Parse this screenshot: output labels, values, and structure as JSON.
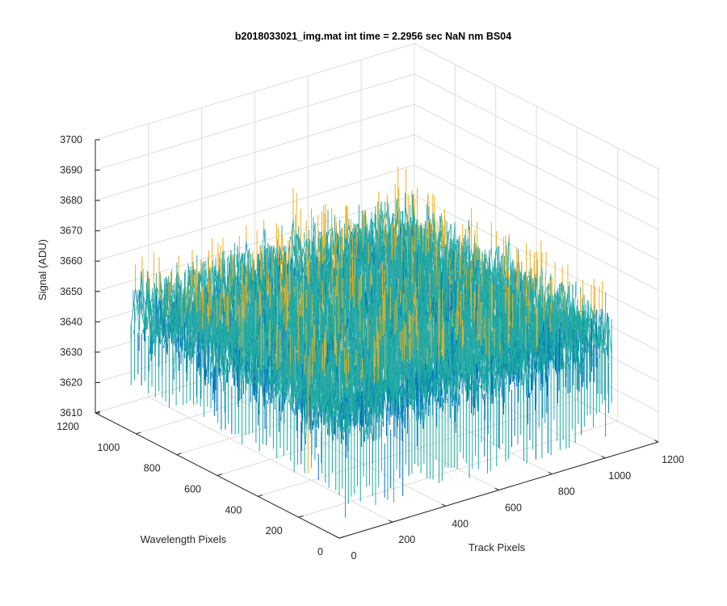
{
  "chart_data": {
    "type": "surface",
    "title": "b2018033021_img.mat int time = 2.2956 sec  NaN nm BS04",
    "xlabel": "Track Pixels",
    "ylabel": "Wavelength Pixels",
    "zlabel": "Signal (ADU)",
    "xlim": [
      0,
      1200
    ],
    "ylim": [
      0,
      1200
    ],
    "zlim": [
      3610,
      3700
    ],
    "xticks": [
      "0",
      "200",
      "400",
      "600",
      "800",
      "1000",
      "1200"
    ],
    "yticks": [
      "0",
      "200",
      "400",
      "600",
      "800",
      "1000",
      "1200"
    ],
    "zticks": [
      "3610",
      "3620",
      "3630",
      "3640",
      "3650",
      "3660",
      "3670",
      "3680",
      "3690",
      "3700"
    ],
    "data_extent": {
      "x": [
        0,
        1024
      ],
      "y": [
        0,
        1024
      ]
    },
    "signal": {
      "mean": 3650,
      "range": [
        3625,
        3680
      ]
    },
    "grid": true,
    "colors": {
      "low": "#0072BD",
      "mid": "#33AAAA",
      "high": "#EDB120",
      "teal": "#1BA9A0"
    }
  }
}
